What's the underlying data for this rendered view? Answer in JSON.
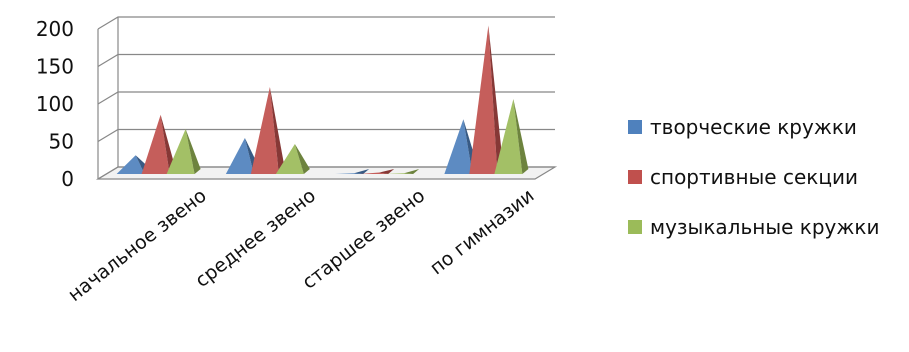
{
  "chart_data": {
    "type": "bar",
    "style": "3d-pyramid",
    "categories": [
      "начальное звено",
      "среднее звено",
      "старшее звено",
      "по гимназии"
    ],
    "series": [
      {
        "name": "творческие кружки",
        "values": [
          25,
          48,
          1,
          73
        ],
        "color": "#4f81bd"
      },
      {
        "name": "спортивные секции",
        "values": [
          79,
          116,
          2,
          198
        ],
        "color": "#c0504d"
      },
      {
        "name": "музыкальные кружки",
        "values": [
          60,
          40,
          1,
          100
        ],
        "color": "#9bbb59"
      }
    ],
    "yticks": [
      0,
      50,
      100,
      150,
      200
    ],
    "ylim": [
      0,
      200
    ],
    "grid": true,
    "legend_position": "right"
  }
}
